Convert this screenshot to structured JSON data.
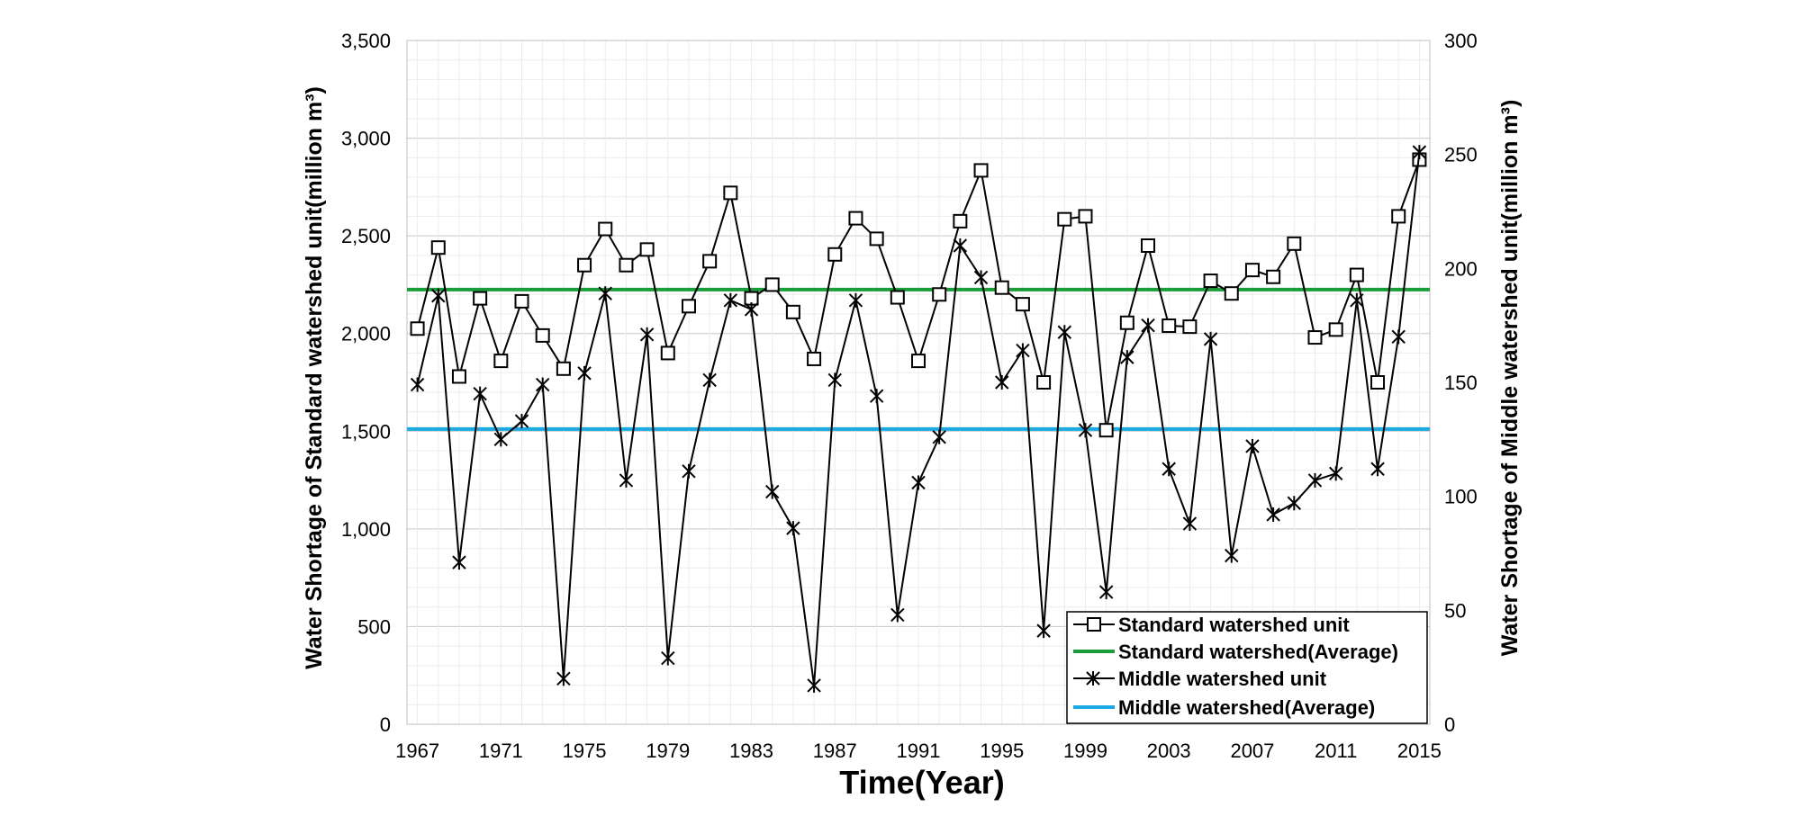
{
  "chart_data": {
    "type": "line",
    "xlabel": "Time(Year)",
    "ylabel_left": "Water Shortage of Standard watershed unit(million m³)",
    "ylabel_right": "Water Shortage of Middle watershed unit(million m³)",
    "x": [
      1967,
      1968,
      1969,
      1970,
      1971,
      1972,
      1973,
      1974,
      1975,
      1976,
      1977,
      1978,
      1979,
      1980,
      1981,
      1982,
      1983,
      1984,
      1985,
      1986,
      1987,
      1988,
      1989,
      1990,
      1991,
      1992,
      1993,
      1994,
      1995,
      1996,
      1997,
      1998,
      1999,
      2000,
      2001,
      2002,
      2003,
      2004,
      2005,
      2006,
      2007,
      2008,
      2009,
      2010,
      2011,
      2012,
      2013,
      2014,
      2015
    ],
    "xlim": [
      1966.5,
      2015.5
    ],
    "x_ticks": [
      "1967",
      "1971",
      "1975",
      "1979",
      "1983",
      "1987",
      "1991",
      "1995",
      "1999",
      "2003",
      "2007",
      "2011",
      "2015"
    ],
    "ylim_left": [
      0,
      3500
    ],
    "y_ticks_left": [
      "0",
      "500",
      "1,000",
      "1,500",
      "2,000",
      "2,500",
      "3,000",
      "3,500"
    ],
    "ylim_right": [
      0,
      300
    ],
    "y_ticks_right": [
      "0",
      "50",
      "100",
      "150",
      "200",
      "250",
      "300"
    ],
    "series": [
      {
        "name": "Standard watershed unit",
        "axis": "left",
        "marker": "square",
        "color": "#000000",
        "values": [
          2025,
          2440,
          1780,
          2180,
          1860,
          2165,
          1990,
          1820,
          2350,
          2535,
          2350,
          2430,
          1900,
          2140,
          2370,
          2720,
          2180,
          2250,
          2110,
          1870,
          2405,
          2590,
          2485,
          2185,
          1860,
          2200,
          2575,
          2835,
          2235,
          2150,
          1750,
          2585,
          2600,
          1505,
          2055,
          2450,
          2040,
          2035,
          2270,
          2205,
          2325,
          2290,
          2460,
          1980,
          2020,
          2300,
          1750,
          2600,
          2890
        ]
      },
      {
        "name": "Standard watershed(Average)",
        "axis": "left",
        "type": "hline",
        "color": "#1a9c3a",
        "value": 2225
      },
      {
        "name": "Middle watershed unit",
        "axis": "right",
        "marker": "asterisk",
        "color": "#000000",
        "values": [
          149,
          188,
          71,
          145,
          125,
          133,
          149,
          20,
          154,
          189,
          107,
          171,
          29,
          111,
          151,
          186,
          182,
          102,
          86,
          17,
          151,
          186,
          144,
          48,
          106,
          126,
          210,
          196,
          150,
          164,
          41,
          172,
          129,
          58,
          161,
          175,
          112,
          88,
          169,
          74,
          122,
          92,
          97,
          107,
          110,
          186,
          112,
          170,
          251
        ]
      },
      {
        "name": "Middle watershed(Average)",
        "axis": "right",
        "type": "hline",
        "color": "#1aa9e0",
        "value": 129.5
      }
    ],
    "legend": {
      "position": "bottom-right",
      "entries": [
        "Standard watershed unit",
        "Standard watershed(Average)",
        "Middle watershed unit",
        "Middle watershed(Average)"
      ]
    },
    "grid": true
  }
}
